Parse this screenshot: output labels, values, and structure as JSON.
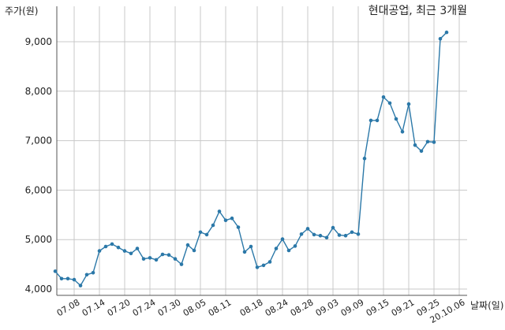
{
  "chart_data": {
    "type": "line",
    "title": "현대공업, 최근 3개월",
    "xlabel": "날짜(일)",
    "ylabel": "주가(원)",
    "ylim": [
      3900,
      9500
    ],
    "grid": true,
    "y_ticks": [
      4000,
      5000,
      6000,
      7000,
      8000,
      9000
    ],
    "y_tick_labels": [
      "4,000",
      "5,000",
      "6,000",
      "7,000",
      "8,000",
      "9,000"
    ],
    "x_tick_labels": [
      "07.08",
      "07.14",
      "07.20",
      "07.24",
      "07.30",
      "08.05",
      "08.11",
      "08.18",
      "08.24",
      "08.28",
      "09.03",
      "09.09",
      "09.15",
      "09.21",
      "09.25",
      "20.10.06"
    ],
    "x_tick_index": [
      3,
      7,
      11,
      15,
      19,
      23,
      27,
      32,
      36,
      40,
      44,
      48,
      52,
      56,
      60,
      64
    ],
    "colors": {
      "line": "#2b78a8",
      "grid": "#c8c8c8"
    },
    "series": [
      {
        "values": [
          4360,
          4210,
          4210,
          4190,
          4070,
          4290,
          4330,
          4770,
          4860,
          4910,
          4840,
          4770,
          4720,
          4820,
          4610,
          4630,
          4590,
          4700,
          4690,
          4610,
          4500,
          4890,
          4780,
          5150,
          5100,
          5290,
          5570,
          5390,
          5430,
          5250,
          4750,
          4860,
          4440,
          4480,
          4550,
          4820,
          5010,
          4780,
          4870,
          5110,
          5220,
          5100,
          5080,
          5040,
          5240,
          5090,
          5080,
          5150,
          5110,
          6640,
          7410,
          7410,
          7880,
          7760,
          7440,
          7180,
          7740,
          6910,
          6790,
          6980,
          6970,
          9060,
          9190
        ]
      }
    ]
  }
}
